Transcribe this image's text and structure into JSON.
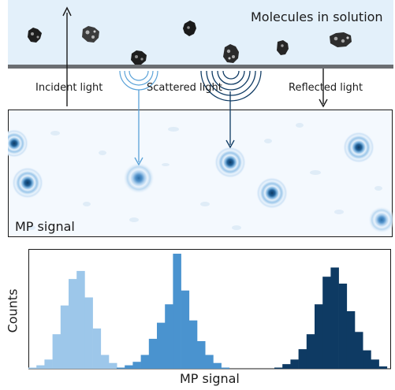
{
  "colors": {
    "solution_bg": "#e3f0fa",
    "surface": "#6b6e72",
    "dark_blue": "#0e3a63",
    "mid_blue": "#4a93cf",
    "light_blue": "#9dc7ea",
    "signal_bg": "#f4f9fe"
  },
  "top": {
    "title": "Molecules in solution",
    "incident_label": "Incident light",
    "scattered_label": "Scattered light",
    "reflected_label": "Reflected light"
  },
  "signal_panel": {
    "label": "MP signal"
  },
  "histogram": {
    "ylabel": "Counts",
    "xlabel": "MP signal",
    "groups": [
      {
        "color": "#9dc7ea",
        "counts": [
          1,
          3,
          8,
          30,
          55,
          78,
          85,
          62,
          35,
          12,
          5,
          1
        ]
      },
      {
        "color": "#4a93cf",
        "counts": [
          1,
          3,
          6,
          12,
          26,
          40,
          56,
          100,
          68,
          42,
          24,
          12,
          5,
          1
        ]
      },
      {
        "color": "#0e3a63",
        "counts": [
          1,
          4,
          8,
          17,
          30,
          56,
          80,
          88,
          74,
          50,
          32,
          16,
          8,
          2
        ]
      }
    ]
  }
}
